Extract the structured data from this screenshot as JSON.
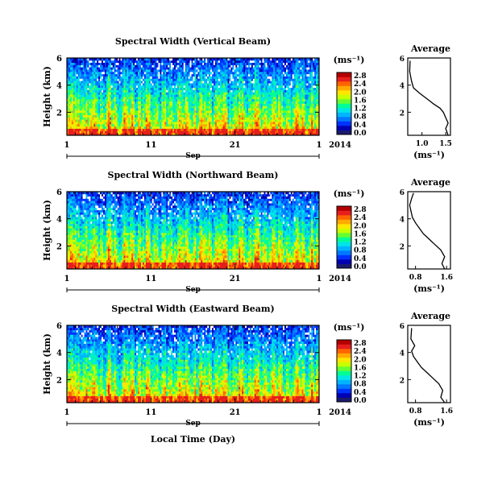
{
  "figure": {
    "xlabel": "Local Time (Day)",
    "year_label": "2014",
    "month_label": "Sep"
  },
  "colorbar": {
    "unit_label": "(ms⁻¹)",
    "colors": [
      "#1a1a6e",
      "#0000b4",
      "#0032ff",
      "#0078ff",
      "#00b4ff",
      "#00e6e6",
      "#00ff96",
      "#64ff32",
      "#c8ff00",
      "#ffe600",
      "#ffaa00",
      "#ff6400",
      "#e61e1e",
      "#b40000"
    ]
  },
  "panels": [
    {
      "title": "Spectral Width (Vertical Beam)",
      "ylabel": "Height (km)",
      "colorbar_ticks": [
        "0.0",
        "0.4",
        "0.8",
        "1.2",
        "1.6",
        "2.0",
        "2.4",
        "2.8"
      ],
      "avg_title": "Average",
      "avg_xlabel": "(ms⁻¹)",
      "avg_xticks": [
        "1.0",
        "1.5"
      ]
    },
    {
      "title": "Spectral Width (Northward Beam)",
      "ylabel": "Height (km)",
      "colorbar_ticks": [
        "0.0",
        "0.4",
        "0.8",
        "1.2",
        "1.6",
        "2.0",
        "2.4",
        "2.8"
      ],
      "avg_title": "Average",
      "avg_xlabel": "(ms⁻¹)",
      "avg_xticks": [
        "0.8",
        "1.6"
      ]
    },
    {
      "title": "Spectral Width (Eastward Beam)",
      "ylabel": "Height (km)",
      "colorbar_ticks": [
        "0.0",
        "0.4",
        "0.8",
        "1.2",
        "1.6",
        "2.0",
        "2.4",
        "2.8"
      ],
      "avg_title": "Average",
      "avg_xlabel": "(ms⁻¹)",
      "avg_xticks": [
        "0.8",
        "1.6"
      ]
    }
  ],
  "chart_data": [
    {
      "type": "heatmap",
      "title": "Spectral Width (Vertical Beam)",
      "xlabel": "Sep 2014",
      "ylabel": "Height (km)",
      "xlim": [
        1,
        31
      ],
      "ylim": [
        0.3,
        6
      ],
      "x_ticks": [
        "1",
        "11",
        "21",
        "1"
      ],
      "y_ticks": [
        2,
        4,
        6
      ],
      "colorbar": {
        "label": "(ms⁻¹)",
        "range": [
          0,
          2.8
        ]
      }
    },
    {
      "type": "line",
      "title": "Average",
      "xlabel": "(ms⁻¹)",
      "xlim": [
        0.7,
        1.6
      ],
      "ylim": [
        0.3,
        6
      ],
      "y_ticks": [
        2,
        4,
        6
      ],
      "series": [
        {
          "x": [
            1.55,
            1.5,
            1.55,
            1.5,
            1.45,
            1.38,
            1.25,
            1.1,
            0.95,
            0.82,
            0.78,
            0.74,
            0.75
          ],
          "y": [
            0.3,
            0.8,
            1.2,
            1.6,
            2.0,
            2.3,
            2.6,
            3.0,
            3.4,
            3.8,
            4.3,
            5.0,
            5.8
          ]
        }
      ]
    },
    {
      "type": "heatmap",
      "title": "Spectral Width (Northward Beam)",
      "xlabel": "Sep 2014",
      "ylabel": "Height (km)",
      "xlim": [
        1,
        31
      ],
      "ylim": [
        0.3,
        6
      ],
      "x_ticks": [
        "1",
        "11",
        "21",
        "1"
      ],
      "y_ticks": [
        2,
        4,
        6
      ],
      "colorbar": {
        "label": "(ms⁻¹)",
        "range": [
          0,
          2.8
        ]
      }
    },
    {
      "type": "line",
      "title": "Average",
      "xlabel": "(ms⁻¹)",
      "xlim": [
        0.6,
        1.7
      ],
      "ylim": [
        0.3,
        6
      ],
      "y_ticks": [
        2,
        4,
        6
      ],
      "series": [
        {
          "x": [
            1.55,
            1.48,
            1.55,
            1.45,
            1.3,
            1.15,
            1.0,
            0.9,
            0.8,
            0.72,
            0.68,
            0.65,
            0.7,
            0.75
          ],
          "y": [
            0.3,
            0.7,
            1.2,
            1.7,
            2.1,
            2.5,
            2.9,
            3.3,
            3.7,
            4.1,
            4.6,
            5.0,
            5.5,
            5.9
          ]
        }
      ]
    },
    {
      "type": "heatmap",
      "title": "Spectral Width (Eastward Beam)",
      "xlabel": "Local Time (Day)",
      "ylabel": "Height (km)",
      "xlim": [
        1,
        31
      ],
      "ylim": [
        0.3,
        6
      ],
      "x_ticks": [
        "1",
        "11",
        "21",
        "1"
      ],
      "y_ticks": [
        2,
        4,
        6
      ],
      "colorbar": {
        "label": "(ms⁻¹)",
        "range": [
          0,
          2.8
        ]
      }
    },
    {
      "type": "line",
      "title": "Average",
      "xlabel": "(ms⁻¹)",
      "xlim": [
        0.6,
        1.7
      ],
      "ylim": [
        0.3,
        6
      ],
      "y_ticks": [
        2,
        4,
        6
      ],
      "series": [
        {
          "x": [
            1.55,
            1.45,
            1.5,
            1.4,
            1.25,
            1.1,
            0.95,
            0.85,
            0.75,
            0.7,
            0.78,
            0.68,
            0.7
          ],
          "y": [
            0.3,
            0.7,
            1.2,
            1.7,
            2.1,
            2.5,
            2.9,
            3.3,
            3.7,
            4.1,
            4.5,
            5.0,
            5.8
          ]
        }
      ]
    }
  ]
}
